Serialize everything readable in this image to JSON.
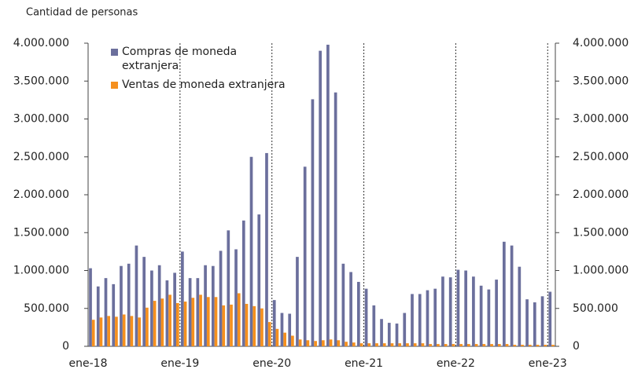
{
  "chart_data": {
    "type": "bar",
    "y_axis_label": "Cantidad de personas",
    "categories": [
      "ene-18",
      null,
      null,
      null,
      null,
      null,
      null,
      null,
      null,
      null,
      null,
      null,
      "ene-19",
      null,
      null,
      null,
      null,
      null,
      null,
      null,
      null,
      null,
      null,
      null,
      "ene-20",
      null,
      null,
      null,
      null,
      null,
      null,
      null,
      null,
      null,
      null,
      null,
      "ene-21",
      null,
      null,
      null,
      null,
      null,
      null,
      null,
      null,
      null,
      null,
      null,
      "ene-22",
      null,
      null,
      null,
      null,
      null,
      null,
      null,
      null,
      null,
      null,
      null,
      "ene-23"
    ],
    "series": [
      {
        "name": "Compras de moneda extranjera",
        "color": "#6b6f9c",
        "values": [
          1030000,
          790000,
          900000,
          820000,
          1060000,
          1090000,
          1330000,
          1180000,
          1000000,
          1070000,
          870000,
          970000,
          1250000,
          900000,
          900000,
          1070000,
          1060000,
          1260000,
          1530000,
          1280000,
          1660000,
          2500000,
          1740000,
          2550000,
          610000,
          440000,
          430000,
          1180000,
          2370000,
          3260000,
          3900000,
          3980000,
          3350000,
          1090000,
          980000,
          850000,
          760000,
          540000,
          360000,
          310000,
          300000,
          440000,
          690000,
          690000,
          740000,
          760000,
          920000,
          910000,
          1010000,
          1000000,
          920000,
          800000,
          750000,
          880000,
          1380000,
          1330000,
          1050000,
          620000,
          580000,
          660000,
          720000
        ]
      },
      {
        "name": "Ventas de moneda extranjera",
        "color": "#f5901e",
        "values": [
          350000,
          380000,
          400000,
          390000,
          420000,
          400000,
          380000,
          510000,
          600000,
          630000,
          680000,
          570000,
          590000,
          640000,
          680000,
          650000,
          650000,
          540000,
          550000,
          700000,
          560000,
          530000,
          500000,
          320000,
          230000,
          180000,
          140000,
          90000,
          80000,
          70000,
          80000,
          90000,
          80000,
          60000,
          50000,
          40000,
          40000,
          40000,
          40000,
          40000,
          40000,
          40000,
          40000,
          40000,
          30000,
          30000,
          30000,
          30000,
          30000,
          30000,
          30000,
          30000,
          30000,
          30000,
          30000,
          20000,
          20000,
          20000,
          20000,
          20000,
          20000
        ]
      }
    ],
    "ylim": [
      0,
      4000000
    ],
    "yticks": [
      {
        "value": 0,
        "label": "0"
      },
      {
        "value": 500000,
        "label": "500.000"
      },
      {
        "value": 1000000,
        "label": "1.000.000"
      },
      {
        "value": 1500000,
        "label": "1.500.000"
      },
      {
        "value": 2000000,
        "label": "2.000.000"
      },
      {
        "value": 2500000,
        "label": "2.500.000"
      },
      {
        "value": 3000000,
        "label": "3.000.000"
      },
      {
        "value": 3500000,
        "label": "3.500.000"
      },
      {
        "value": 4000000,
        "label": "4.000.000"
      }
    ],
    "y2lim": [
      0,
      4000000
    ],
    "y2ticks": [
      {
        "value": 0,
        "label": "0"
      },
      {
        "value": 500000,
        "label": "500.000"
      },
      {
        "value": 1000000,
        "label": "1.000.000"
      },
      {
        "value": 1500000,
        "label": "1.500.000"
      },
      {
        "value": 2000000,
        "label": "2.000.000"
      },
      {
        "value": 2500000,
        "label": "2.500.000"
      },
      {
        "value": 3000000,
        "label": "3.000.000"
      },
      {
        "value": 3500000,
        "label": "3.500.000"
      },
      {
        "value": 4000000,
        "label": "4.000.000"
      }
    ],
    "legend": "upper left"
  }
}
